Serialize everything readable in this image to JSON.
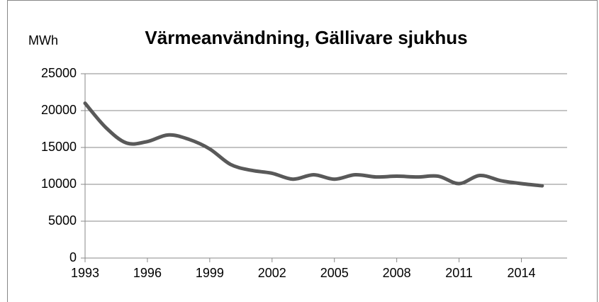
{
  "chart_data": {
    "type": "line",
    "title": "Värmeanvändning, Gällivare sjukhus",
    "y_label": "MWh",
    "x": [
      1993,
      1994,
      1995,
      1996,
      1997,
      1998,
      1999,
      2000,
      2001,
      2002,
      2003,
      2004,
      2005,
      2006,
      2007,
      2008,
      2009,
      2010,
      2011,
      2012,
      2013,
      2014,
      2015
    ],
    "series": [
      {
        "name": "Värmeanvändning",
        "color": "#595959",
        "values": [
          21000,
          17700,
          15600,
          15800,
          16700,
          16100,
          14800,
          12700,
          11900,
          11500,
          10700,
          11300,
          10700,
          11300,
          11000,
          11100,
          11000,
          11100,
          10100,
          11200,
          10500,
          10100,
          9800
        ]
      }
    ],
    "xlim": [
      1993,
      2016.2
    ],
    "xticks": [
      1993,
      1996,
      1999,
      2002,
      2005,
      2008,
      2011,
      2014
    ],
    "ylim": [
      0,
      25000
    ],
    "yticks": [
      0,
      5000,
      10000,
      15000,
      20000,
      25000
    ],
    "grid": true
  }
}
